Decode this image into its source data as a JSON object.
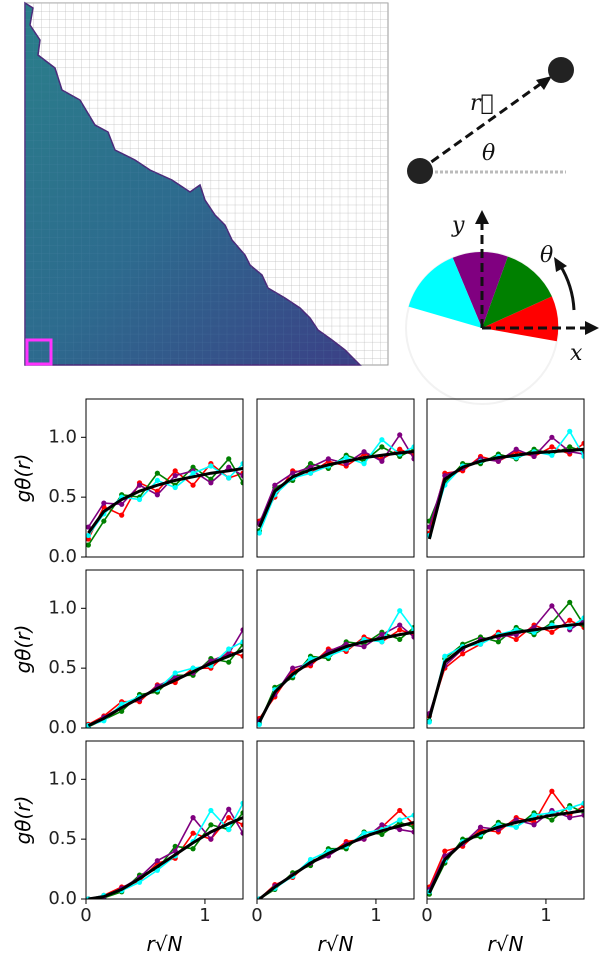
{
  "diagram": {
    "vector_label": "r⃗",
    "angle_label": "θ",
    "y_axis": "y",
    "x_axis": "x",
    "rotation_label": "θ"
  },
  "chart_data": [
    {
      "type": "line",
      "ylabel": "gθ(r)",
      "x": [
        0.02,
        0.15,
        0.3,
        0.45,
        0.6,
        0.75,
        0.9,
        1.05,
        1.2,
        1.32
      ],
      "xlim": [
        0,
        1.32
      ],
      "ylim": [
        0,
        1.32
      ],
      "yticks": [
        {
          "value": 0,
          "label": "0.0"
        },
        {
          "value": 0.5,
          "label": "0.5"
        },
        {
          "value": 1,
          "label": "1.0"
        }
      ],
      "series": [
        {
          "color": "#ff0000",
          "values": [
            0.15,
            0.42,
            0.35,
            0.62,
            0.55,
            0.72,
            0.6,
            0.78,
            0.66,
            0.7
          ]
        },
        {
          "color": "#008000",
          "values": [
            0.1,
            0.3,
            0.52,
            0.5,
            0.7,
            0.6,
            0.75,
            0.65,
            0.82,
            0.62
          ]
        },
        {
          "color": "#800080",
          "values": [
            0.25,
            0.45,
            0.44,
            0.6,
            0.52,
            0.68,
            0.72,
            0.62,
            0.75,
            0.68
          ]
        },
        {
          "color": "#00ffff",
          "values": [
            0.18,
            0.36,
            0.5,
            0.48,
            0.64,
            0.58,
            0.7,
            0.76,
            0.66,
            0.78
          ]
        },
        {
          "color": "#000000",
          "values": [
            0.2,
            0.38,
            0.48,
            0.55,
            0.6,
            0.64,
            0.67,
            0.7,
            0.72,
            0.74
          ]
        }
      ]
    },
    {
      "type": "line",
      "x": [
        0.02,
        0.15,
        0.3,
        0.45,
        0.6,
        0.75,
        0.9,
        1.05,
        1.2,
        1.32
      ],
      "xlim": [
        0,
        1.32
      ],
      "ylim": [
        0,
        1.32
      ],
      "series": [
        {
          "color": "#ff0000",
          "values": [
            0.3,
            0.5,
            0.72,
            0.7,
            0.8,
            0.76,
            0.86,
            0.82,
            0.9,
            0.85
          ]
        },
        {
          "color": "#008000",
          "values": [
            0.22,
            0.58,
            0.64,
            0.78,
            0.74,
            0.85,
            0.8,
            0.92,
            0.84,
            0.9
          ]
        },
        {
          "color": "#800080",
          "values": [
            0.28,
            0.6,
            0.7,
            0.75,
            0.82,
            0.78,
            0.88,
            0.8,
            1.02,
            0.82
          ]
        },
        {
          "color": "#00ffff",
          "values": [
            0.2,
            0.52,
            0.66,
            0.7,
            0.76,
            0.83,
            0.78,
            0.98,
            0.86,
            0.92
          ]
        },
        {
          "color": "#000000",
          "values": [
            0.25,
            0.55,
            0.67,
            0.73,
            0.77,
            0.8,
            0.83,
            0.85,
            0.87,
            0.88
          ]
        }
      ]
    },
    {
      "type": "line",
      "x": [
        0.02,
        0.15,
        0.3,
        0.45,
        0.6,
        0.75,
        0.9,
        1.05,
        1.2,
        1.32
      ],
      "xlim": [
        0,
        1.32
      ],
      "ylim": [
        0,
        1.32
      ],
      "series": [
        {
          "color": "#ff0000",
          "values": [
            0.2,
            0.7,
            0.72,
            0.84,
            0.8,
            0.88,
            0.84,
            0.92,
            0.86,
            0.95
          ]
        },
        {
          "color": "#008000",
          "values": [
            0.3,
            0.62,
            0.78,
            0.78,
            0.86,
            0.82,
            0.9,
            0.86,
            0.92,
            0.88
          ]
        },
        {
          "color": "#800080",
          "values": [
            0.25,
            0.68,
            0.74,
            0.82,
            0.8,
            0.9,
            0.84,
            1.0,
            0.88,
            0.86
          ]
        },
        {
          "color": "#00ffff",
          "values": [
            0.18,
            0.6,
            0.76,
            0.8,
            0.84,
            0.83,
            0.88,
            0.85,
            1.05,
            0.84
          ]
        },
        {
          "color": "#000000",
          "values": [
            0.15,
            0.65,
            0.75,
            0.8,
            0.83,
            0.85,
            0.87,
            0.88,
            0.89,
            0.9
          ]
        }
      ]
    },
    {
      "type": "line",
      "ylabel": "gθ(r)",
      "x": [
        0.02,
        0.15,
        0.3,
        0.45,
        0.6,
        0.75,
        0.9,
        1.05,
        1.2,
        1.32
      ],
      "xlim": [
        0,
        1.32
      ],
      "ylim": [
        0,
        1.32
      ],
      "yticks": [
        {
          "value": 0,
          "label": "0.0"
        },
        {
          "value": 0.5,
          "label": "0.5"
        },
        {
          "value": 1,
          "label": "1.0"
        }
      ],
      "series": [
        {
          "color": "#ff0000",
          "values": [
            0.03,
            0.1,
            0.22,
            0.22,
            0.36,
            0.38,
            0.5,
            0.5,
            0.64,
            0.6
          ]
        },
        {
          "color": "#008000",
          "values": [
            0.01,
            0.07,
            0.14,
            0.28,
            0.3,
            0.44,
            0.44,
            0.58,
            0.55,
            0.7
          ]
        },
        {
          "color": "#800080",
          "values": [
            0.02,
            0.09,
            0.18,
            0.24,
            0.35,
            0.42,
            0.46,
            0.56,
            0.62,
            0.82
          ]
        },
        {
          "color": "#00ffff",
          "values": [
            0.02,
            0.06,
            0.2,
            0.26,
            0.32,
            0.46,
            0.5,
            0.52,
            0.66,
            0.72
          ]
        },
        {
          "color": "#000000",
          "values": [
            0.02,
            0.08,
            0.17,
            0.25,
            0.33,
            0.4,
            0.47,
            0.54,
            0.6,
            0.65
          ]
        }
      ]
    },
    {
      "type": "line",
      "x": [
        0.02,
        0.15,
        0.3,
        0.45,
        0.6,
        0.75,
        0.9,
        1.05,
        1.2,
        1.32
      ],
      "xlim": [
        0,
        1.32
      ],
      "ylim": [
        0,
        1.32
      ],
      "series": [
        {
          "color": "#ff0000",
          "values": [
            0.08,
            0.26,
            0.48,
            0.52,
            0.66,
            0.64,
            0.76,
            0.72,
            0.82,
            0.78
          ]
        },
        {
          "color": "#008000",
          "values": [
            0.04,
            0.34,
            0.42,
            0.6,
            0.58,
            0.72,
            0.7,
            0.8,
            0.74,
            0.84
          ]
        },
        {
          "color": "#800080",
          "values": [
            0.06,
            0.28,
            0.5,
            0.54,
            0.64,
            0.7,
            0.68,
            0.78,
            0.86,
            0.76
          ]
        },
        {
          "color": "#00ffff",
          "values": [
            0.03,
            0.32,
            0.44,
            0.58,
            0.6,
            0.66,
            0.74,
            0.72,
            0.98,
            0.82
          ]
        },
        {
          "color": "#000000",
          "values": [
            0.05,
            0.3,
            0.45,
            0.55,
            0.62,
            0.68,
            0.72,
            0.75,
            0.78,
            0.8
          ]
        }
      ]
    },
    {
      "type": "line",
      "x": [
        0.02,
        0.15,
        0.3,
        0.45,
        0.6,
        0.75,
        0.9,
        1.05,
        1.2,
        1.32
      ],
      "xlim": [
        0,
        1.32
      ],
      "ylim": [
        0,
        1.32
      ],
      "series": [
        {
          "color": "#ff0000",
          "values": [
            0.1,
            0.5,
            0.62,
            0.7,
            0.8,
            0.74,
            0.86,
            0.8,
            0.9,
            0.84
          ]
        },
        {
          "color": "#008000",
          "values": [
            0.06,
            0.58,
            0.7,
            0.76,
            0.72,
            0.84,
            0.78,
            0.88,
            1.05,
            0.86
          ]
        },
        {
          "color": "#800080",
          "values": [
            0.12,
            0.52,
            0.66,
            0.74,
            0.76,
            0.78,
            0.84,
            1.02,
            0.82,
            0.9
          ]
        },
        {
          "color": "#00ffff",
          "values": [
            0.05,
            0.6,
            0.68,
            0.7,
            0.78,
            0.82,
            0.8,
            0.86,
            0.84,
            0.92
          ]
        },
        {
          "color": "#000000",
          "values": [
            0.08,
            0.55,
            0.67,
            0.73,
            0.77,
            0.8,
            0.82,
            0.84,
            0.86,
            0.87
          ]
        }
      ]
    },
    {
      "type": "line",
      "ylabel": "gθ(r)",
      "xlabel": "r√N",
      "x": [
        0.02,
        0.15,
        0.3,
        0.45,
        0.6,
        0.75,
        0.9,
        1.05,
        1.2,
        1.32
      ],
      "xlim": [
        0,
        1.32
      ],
      "ylim": [
        0,
        1.32
      ],
      "yticks": [
        {
          "value": 0,
          "label": "0.0"
        },
        {
          "value": 0.5,
          "label": "0.5"
        },
        {
          "value": 1,
          "label": "1.0"
        }
      ],
      "xticks": [
        0,
        1
      ],
      "series": [
        {
          "color": "#ff0000",
          "values": [
            0.0,
            0.03,
            0.1,
            0.15,
            0.3,
            0.34,
            0.55,
            0.5,
            0.68,
            0.62
          ]
        },
        {
          "color": "#008000",
          "values": [
            0.0,
            0.01,
            0.06,
            0.2,
            0.25,
            0.44,
            0.42,
            0.62,
            0.58,
            0.72
          ]
        },
        {
          "color": "#800080",
          "values": [
            0.0,
            0.02,
            0.09,
            0.18,
            0.32,
            0.4,
            0.68,
            0.5,
            0.75,
            0.55
          ]
        },
        {
          "color": "#00ffff",
          "values": [
            0.0,
            0.03,
            0.07,
            0.14,
            0.24,
            0.36,
            0.48,
            0.74,
            0.58,
            0.8
          ]
        },
        {
          "color": "#000000",
          "values": [
            0.0,
            0.02,
            0.08,
            0.17,
            0.27,
            0.37,
            0.47,
            0.56,
            0.63,
            0.68
          ]
        }
      ]
    },
    {
      "type": "line",
      "xlabel": "r√N",
      "x": [
        0.02,
        0.15,
        0.3,
        0.45,
        0.6,
        0.75,
        0.9,
        1.05,
        1.2,
        1.32
      ],
      "xlim": [
        0,
        1.32
      ],
      "ylim": [
        0,
        1.32
      ],
      "xticks": [
        0,
        1
      ],
      "series": [
        {
          "color": "#ff0000",
          "values": [
            0.0,
            0.12,
            0.18,
            0.32,
            0.36,
            0.48,
            0.5,
            0.6,
            0.74,
            0.62
          ]
        },
        {
          "color": "#008000",
          "values": [
            0.0,
            0.08,
            0.22,
            0.28,
            0.42,
            0.42,
            0.56,
            0.54,
            0.64,
            0.6
          ]
        },
        {
          "color": "#800080",
          "values": [
            0.0,
            0.11,
            0.2,
            0.3,
            0.36,
            0.46,
            0.5,
            0.62,
            0.58,
            0.56
          ]
        },
        {
          "color": "#00ffff",
          "values": [
            0.0,
            0.09,
            0.19,
            0.33,
            0.4,
            0.44,
            0.55,
            0.58,
            0.66,
            0.7
          ]
        },
        {
          "color": "#000000",
          "values": [
            0.0,
            0.1,
            0.2,
            0.3,
            0.38,
            0.45,
            0.52,
            0.57,
            0.61,
            0.64
          ]
        }
      ]
    },
    {
      "type": "line",
      "xlabel": "r√N",
      "x": [
        0.02,
        0.15,
        0.3,
        0.45,
        0.6,
        0.75,
        0.9,
        1.05,
        1.2,
        1.32
      ],
      "xlim": [
        0,
        1.32
      ],
      "ylim": [
        0,
        1.32
      ],
      "xticks": [
        0,
        1
      ],
      "series": [
        {
          "color": "#ff0000",
          "values": [
            0.1,
            0.4,
            0.44,
            0.58,
            0.56,
            0.68,
            0.64,
            0.9,
            0.7,
            0.78
          ]
        },
        {
          "color": "#008000",
          "values": [
            0.04,
            0.3,
            0.5,
            0.52,
            0.64,
            0.6,
            0.72,
            0.66,
            0.78,
            0.72
          ]
        },
        {
          "color": "#800080",
          "values": [
            0.08,
            0.36,
            0.46,
            0.6,
            0.58,
            0.66,
            0.62,
            0.74,
            0.68,
            0.7
          ]
        },
        {
          "color": "#00ffff",
          "values": [
            0.06,
            0.32,
            0.48,
            0.54,
            0.62,
            0.6,
            0.7,
            0.72,
            0.76,
            0.8
          ]
        },
        {
          "color": "#000000",
          "values": [
            0.05,
            0.33,
            0.47,
            0.55,
            0.6,
            0.64,
            0.67,
            0.7,
            0.72,
            0.74
          ]
        }
      ]
    }
  ]
}
